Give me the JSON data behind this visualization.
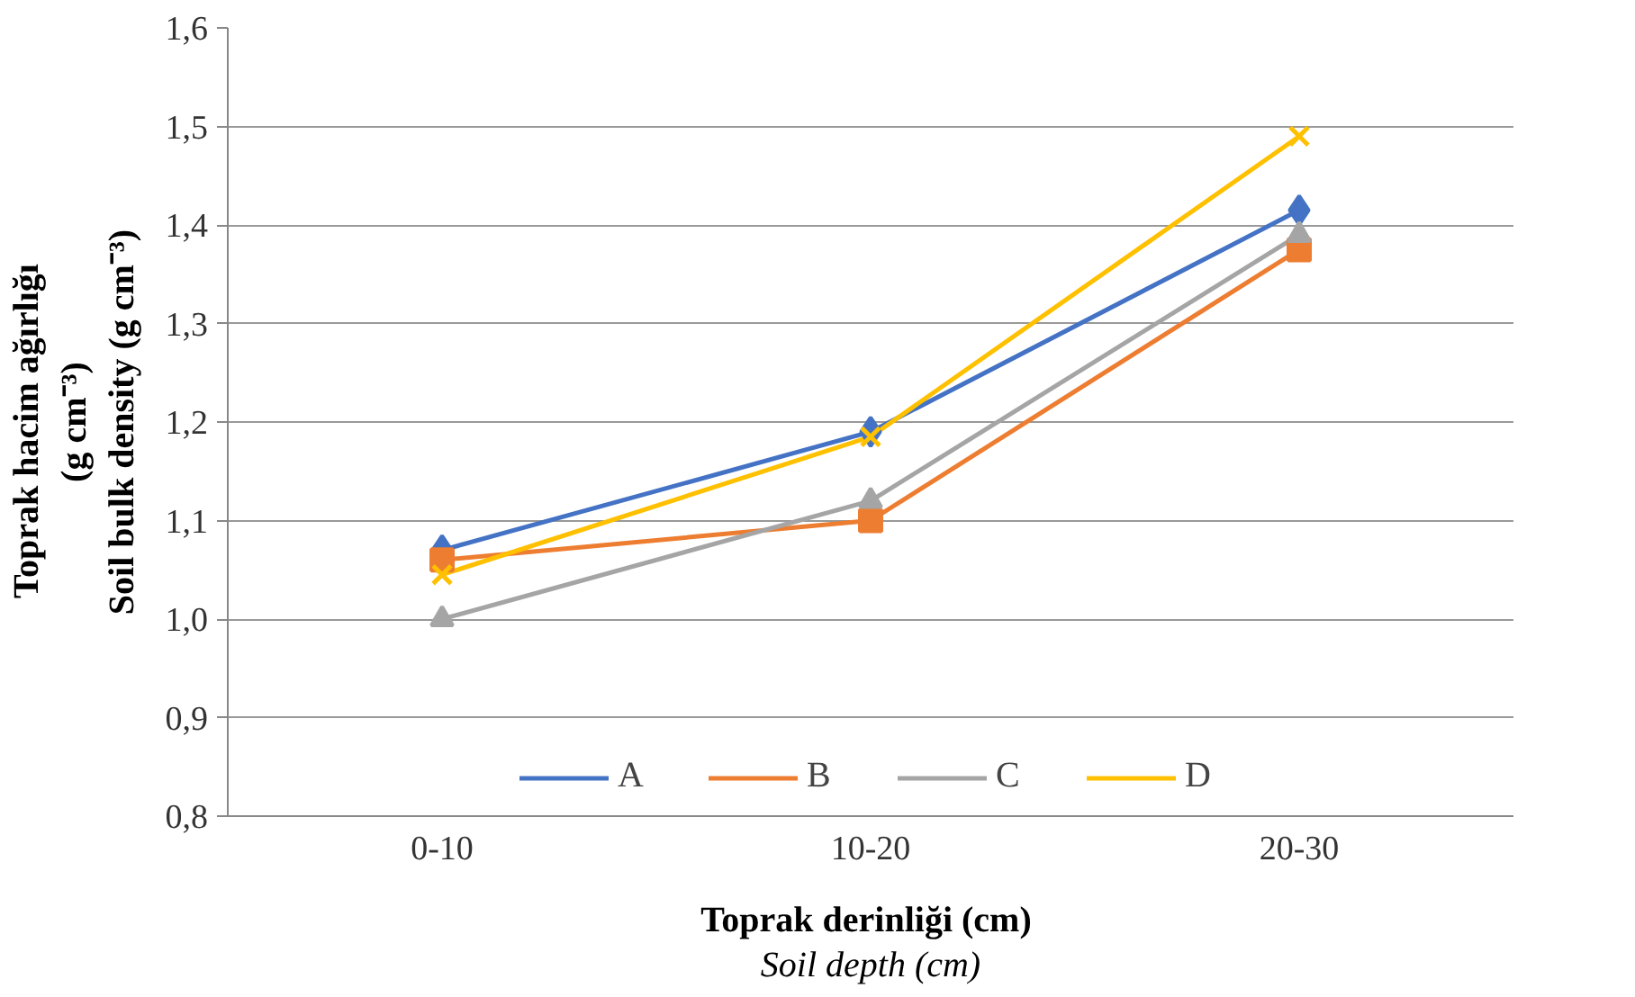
{
  "chart_data": {
    "type": "line",
    "categories": [
      "0-10",
      "10-20",
      "20-30"
    ],
    "xlabel": "Toprak derinliği  (cm)\nSoil depth (cm)",
    "ylabel": "Toprak  hacim  ağırlığı\n(g cm⁻³)\nSoil bulk density (g cm⁻³)",
    "ylim": [
      0.8,
      1.6
    ],
    "yticks": [
      {
        "value": 0.8,
        "label": "0,8"
      },
      {
        "value": 0.9,
        "label": "0,9"
      },
      {
        "value": 1.0,
        "label": "1,0"
      },
      {
        "value": 1.1,
        "label": "1,1"
      },
      {
        "value": 1.2,
        "label": "1,2"
      },
      {
        "value": 1.3,
        "label": "1,3"
      },
      {
        "value": 1.4,
        "label": "1,4"
      },
      {
        "value": 1.5,
        "label": "1,5"
      },
      {
        "value": 1.6,
        "label": "1,6"
      }
    ],
    "grid": "y",
    "legend": "bottom",
    "series": [
      {
        "name": "A",
        "color": "#4472c4",
        "marker": "diamond",
        "values": [
          1.07,
          1.19,
          1.415
        ]
      },
      {
        "name": "B",
        "color": "#ed7d31",
        "marker": "square",
        "values": [
          1.06,
          1.1,
          1.375
        ]
      },
      {
        "name": "C",
        "color": "#a5a5a5",
        "marker": "triangle",
        "values": [
          1.0,
          1.12,
          1.39
        ]
      },
      {
        "name": "D",
        "color": "#ffc000",
        "marker": "cross",
        "values": [
          1.045,
          1.185,
          1.49
        ]
      }
    ]
  }
}
